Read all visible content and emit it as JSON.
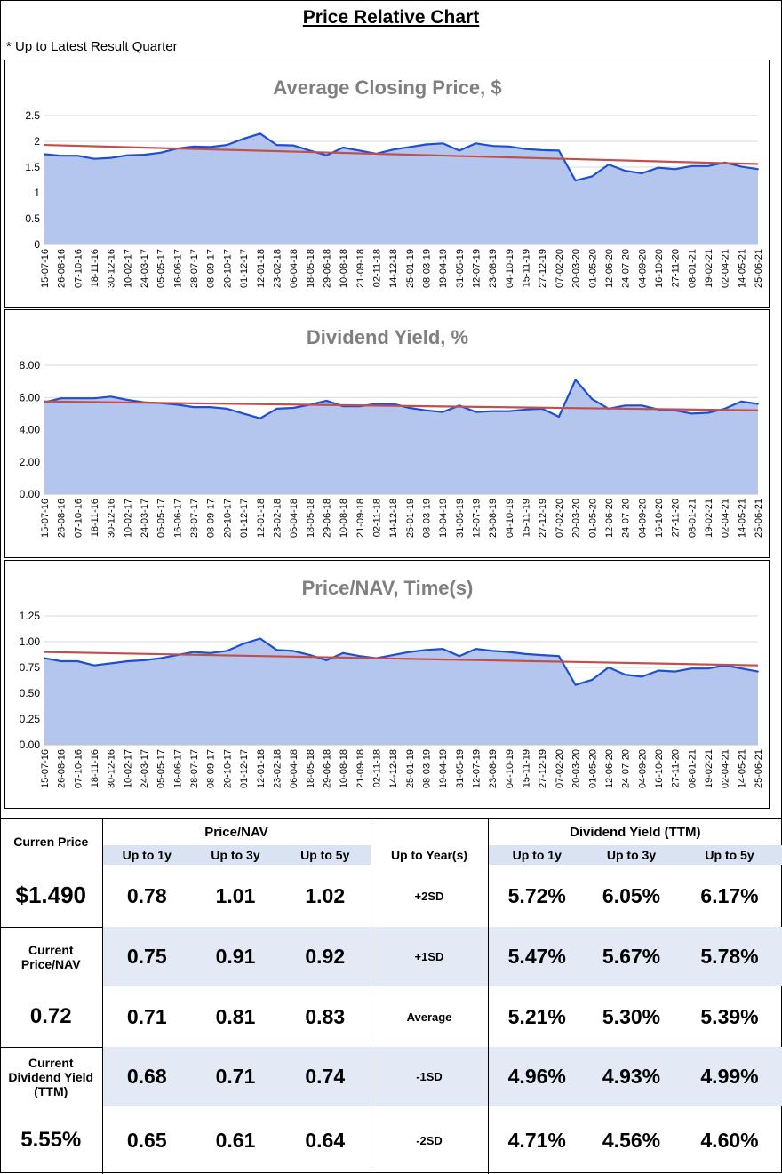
{
  "page": {
    "title": "Price Relative Chart",
    "note": "* Up to Latest Result Quarter"
  },
  "colors": {
    "line": "#1f4fd1",
    "fill": "#b4c6ee",
    "trend": "#c0504d",
    "grid": "#d9d9d9",
    "shade": "#e3eaf6"
  },
  "x_labels": [
    "15-07-16",
    "26-08-16",
    "07-10-16",
    "18-11-16",
    "30-12-16",
    "10-02-17",
    "24-03-17",
    "05-05-17",
    "16-06-17",
    "28-07-17",
    "08-09-17",
    "20-10-17",
    "01-12-17",
    "12-01-18",
    "23-02-18",
    "06-04-18",
    "18-05-18",
    "29-06-18",
    "10-08-18",
    "21-09-18",
    "02-11-18",
    "14-12-18",
    "25-01-19",
    "08-03-19",
    "19-04-19",
    "31-05-19",
    "12-07-19",
    "23-08-19",
    "04-10-19",
    "15-11-19",
    "27-12-19",
    "07-02-20",
    "20-03-20",
    "01-05-20",
    "12-06-20",
    "24-07-20",
    "04-09-20",
    "16-10-20",
    "27-11-20",
    "08-01-21",
    "19-02-21",
    "02-04-21",
    "14-05-21",
    "25-06-21"
  ],
  "chart_data": [
    {
      "type": "area",
      "title": "Average Closing Price, $",
      "ylim": [
        0,
        2.5
      ],
      "yticks": [
        "0",
        "0.5",
        "1",
        "1.5",
        "2",
        "2.5"
      ],
      "values": [
        1.75,
        1.72,
        1.72,
        1.66,
        1.68,
        1.73,
        1.74,
        1.78,
        1.86,
        1.9,
        1.89,
        1.93,
        2.05,
        2.15,
        1.93,
        1.92,
        1.82,
        1.73,
        1.88,
        1.82,
        1.76,
        1.84,
        1.89,
        1.94,
        1.96,
        1.82,
        1.96,
        1.91,
        1.9,
        1.85,
        1.83,
        1.82,
        1.24,
        1.32,
        1.55,
        1.43,
        1.38,
        1.49,
        1.46,
        1.52,
        1.52,
        1.59,
        1.51,
        1.46
      ],
      "trend": [
        1.93,
        1.56
      ]
    },
    {
      "type": "area",
      "title": "Dividend Yield, %",
      "ylim": [
        0,
        8
      ],
      "yticks": [
        "0.00",
        "2.00",
        "4.00",
        "6.00",
        "8.00"
      ],
      "values": [
        5.7,
        5.95,
        5.95,
        5.95,
        6.05,
        5.85,
        5.7,
        5.65,
        5.55,
        5.4,
        5.4,
        5.3,
        5.0,
        4.7,
        5.3,
        5.35,
        5.55,
        5.8,
        5.45,
        5.45,
        5.6,
        5.6,
        5.35,
        5.2,
        5.1,
        5.5,
        5.1,
        5.15,
        5.15,
        5.25,
        5.3,
        4.8,
        7.1,
        5.9,
        5.3,
        5.5,
        5.5,
        5.25,
        5.2,
        5.0,
        5.05,
        5.3,
        5.75,
        5.6
      ],
      "trend": [
        5.75,
        5.2
      ]
    },
    {
      "type": "area",
      "title": "Price/NAV, Time(s)",
      "ylim": [
        0,
        1.25
      ],
      "yticks": [
        "0.00",
        "0.25",
        "0.50",
        "0.75",
        "1.00",
        "1.25"
      ],
      "values": [
        0.84,
        0.81,
        0.81,
        0.77,
        0.79,
        0.81,
        0.82,
        0.84,
        0.87,
        0.9,
        0.89,
        0.91,
        0.98,
        1.03,
        0.92,
        0.91,
        0.87,
        0.82,
        0.89,
        0.86,
        0.84,
        0.87,
        0.9,
        0.92,
        0.93,
        0.86,
        0.93,
        0.91,
        0.9,
        0.88,
        0.87,
        0.86,
        0.58,
        0.63,
        0.75,
        0.68,
        0.66,
        0.72,
        0.71,
        0.74,
        0.74,
        0.77,
        0.74,
        0.71
      ],
      "trend": [
        0.9,
        0.77
      ]
    }
  ],
  "stats": {
    "current_price_label": "Curren Price",
    "current_price": "$1.490",
    "current_pnav_label": "Current Price/NAV",
    "current_pnav": "0.72",
    "current_dy_label": "Current Dividend Yield (TTM)",
    "current_dy": "5.55%",
    "pnav_header": "Price/NAV",
    "dy_header": "Dividend Yield (TTM)",
    "period_labels": [
      "Up to 1y",
      "Up to 3y",
      "Up to 5y"
    ],
    "level_header": "Up to Year(s)",
    "rows": [
      {
        "level": "+2SD",
        "pnav": [
          "0.78",
          "1.01",
          "1.02"
        ],
        "dy": [
          "5.72%",
          "6.05%",
          "6.17%"
        ]
      },
      {
        "level": "+1SD",
        "pnav": [
          "0.75",
          "0.91",
          "0.92"
        ],
        "dy": [
          "5.47%",
          "5.67%",
          "5.78%"
        ]
      },
      {
        "level": "Average",
        "pnav": [
          "0.71",
          "0.81",
          "0.83"
        ],
        "dy": [
          "5.21%",
          "5.30%",
          "5.39%"
        ]
      },
      {
        "level": "-1SD",
        "pnav": [
          "0.68",
          "0.71",
          "0.74"
        ],
        "dy": [
          "4.96%",
          "4.93%",
          "4.99%"
        ]
      },
      {
        "level": "-2SD",
        "pnav": [
          "0.65",
          "0.61",
          "0.64"
        ],
        "dy": [
          "4.71%",
          "4.56%",
          "4.60%"
        ]
      }
    ]
  }
}
